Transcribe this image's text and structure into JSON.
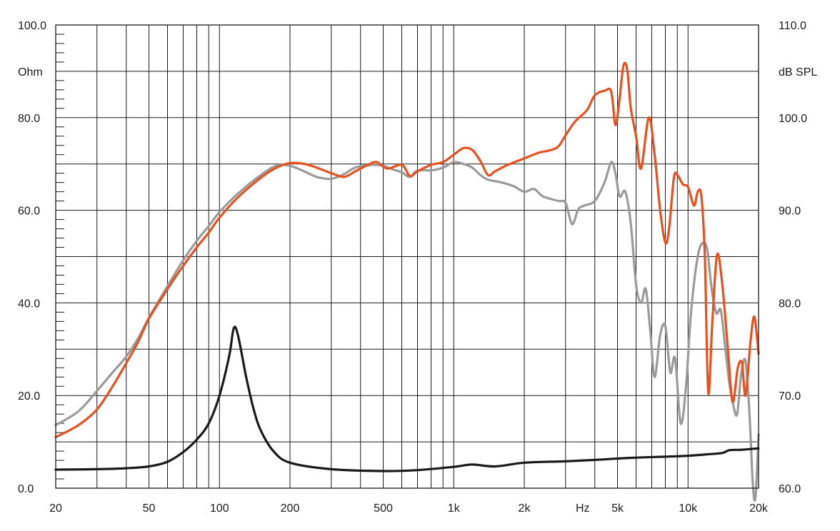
{
  "chart_data": {
    "type": "line",
    "xscale": "log",
    "xlim": [
      20,
      20000
    ],
    "grid": true,
    "legend": "none",
    "left_axis": {
      "label": "Ohm",
      "ylim": [
        0,
        100
      ],
      "ticks": [
        {
          "value": 0,
          "label": "0.0"
        },
        {
          "value": 20,
          "label": "20.0"
        },
        {
          "value": 40,
          "label": "40.0"
        },
        {
          "value": 60,
          "label": "60.0"
        },
        {
          "value": 80,
          "label": "80.0"
        },
        {
          "value": 100,
          "label": "100.0"
        }
      ]
    },
    "right_axis": {
      "label": "dB SPL",
      "ylim": [
        60,
        110
      ],
      "ticks": [
        {
          "value": 60,
          "label": "60.0"
        },
        {
          "value": 70,
          "label": "70.0"
        },
        {
          "value": 80,
          "label": "80.0"
        },
        {
          "value": 90,
          "label": "90.0"
        },
        {
          "value": 100,
          "label": "100.0"
        },
        {
          "value": 110,
          "label": "110.0"
        }
      ]
    },
    "x_axis": {
      "unit_label": "Hz",
      "unit_position": 3000,
      "ticks": [
        {
          "value": 20,
          "label": "20"
        },
        {
          "value": 50,
          "label": "50"
        },
        {
          "value": 100,
          "label": "100"
        },
        {
          "value": 200,
          "label": "200"
        },
        {
          "value": 500,
          "label": "500"
        },
        {
          "value": 1000,
          "label": "1k"
        },
        {
          "value": 2000,
          "label": "2k"
        },
        {
          "value": 5000,
          "label": "5k"
        },
        {
          "value": 10000,
          "label": "10k"
        },
        {
          "value": 20000,
          "label": "20k"
        }
      ],
      "gridlines": [
        20,
        30,
        40,
        50,
        60,
        70,
        80,
        90,
        100,
        200,
        300,
        400,
        500,
        600,
        700,
        800,
        900,
        1000,
        2000,
        3000,
        4000,
        5000,
        6000,
        7000,
        8000,
        9000,
        10000,
        20000
      ]
    },
    "series": [
      {
        "axis": "right",
        "color": "#e8501e",
        "points": [
          [
            20,
            65.5
          ],
          [
            25,
            66.8
          ],
          [
            30,
            68.5
          ],
          [
            35,
            71
          ],
          [
            40,
            73.5
          ],
          [
            45,
            75.8
          ],
          [
            50,
            78.3
          ],
          [
            60,
            81.5
          ],
          [
            70,
            84
          ],
          [
            80,
            86
          ],
          [
            90,
            87.6
          ],
          [
            100,
            89.2
          ],
          [
            120,
            91.4
          ],
          [
            150,
            93.5
          ],
          [
            175,
            94.6
          ],
          [
            200,
            95.1
          ],
          [
            230,
            95.0
          ],
          [
            260,
            94.6
          ],
          [
            300,
            94.0
          ],
          [
            340,
            93.6
          ],
          [
            380,
            94.2
          ],
          [
            430,
            94.9
          ],
          [
            470,
            95.2
          ],
          [
            520,
            94.5
          ],
          [
            600,
            94.9
          ],
          [
            650,
            93.7
          ],
          [
            700,
            94.2
          ],
          [
            800,
            94.9
          ],
          [
            900,
            95.2
          ],
          [
            1000,
            96.0
          ],
          [
            1100,
            96.7
          ],
          [
            1200,
            96.5
          ],
          [
            1300,
            95.3
          ],
          [
            1400,
            93.8
          ],
          [
            1500,
            94.2
          ],
          [
            1700,
            94.9
          ],
          [
            2000,
            95.6
          ],
          [
            2300,
            96.2
          ],
          [
            2600,
            96.5
          ],
          [
            2800,
            96.9
          ],
          [
            3000,
            98.1
          ],
          [
            3300,
            99.6
          ],
          [
            3700,
            100.8
          ],
          [
            4000,
            102.4
          ],
          [
            4400,
            102.9
          ],
          [
            4700,
            102.8
          ],
          [
            4900,
            99.2
          ],
          [
            5100,
            102
          ],
          [
            5300,
            105.6
          ],
          [
            5500,
            105.2
          ],
          [
            5700,
            101
          ],
          [
            6000,
            98
          ],
          [
            6300,
            94.5
          ],
          [
            6800,
            100
          ],
          [
            7200,
            96
          ],
          [
            7600,
            90
          ],
          [
            8000,
            86.5
          ],
          [
            8300,
            88
          ],
          [
            8700,
            93.5
          ],
          [
            9000,
            93.8
          ],
          [
            9500,
            92.8
          ],
          [
            10000,
            92.5
          ],
          [
            10600,
            90.5
          ],
          [
            11000,
            92.0
          ],
          [
            11400,
            91.5
          ],
          [
            11800,
            85
          ],
          [
            12200,
            70.3
          ],
          [
            12700,
            78
          ],
          [
            13300,
            85.2
          ],
          [
            14000,
            82
          ],
          [
            14800,
            75
          ],
          [
            15500,
            69.3
          ],
          [
            16300,
            73
          ],
          [
            17000,
            73.5
          ],
          [
            17600,
            70
          ],
          [
            18500,
            76
          ],
          [
            19200,
            78.5
          ],
          [
            20000,
            74.5
          ]
        ]
      },
      {
        "axis": "right",
        "color": "#9a9a9a",
        "points": [
          [
            20,
            66.8
          ],
          [
            25,
            68.3
          ],
          [
            30,
            70.5
          ],
          [
            35,
            72.5
          ],
          [
            40,
            74.2
          ],
          [
            45,
            76.2
          ],
          [
            50,
            78.4
          ],
          [
            60,
            81.8
          ],
          [
            70,
            84.6
          ],
          [
            80,
            86.7
          ],
          [
            90,
            88.3
          ],
          [
            100,
            89.8
          ],
          [
            120,
            91.8
          ],
          [
            150,
            93.8
          ],
          [
            175,
            94.8
          ],
          [
            200,
            94.8
          ],
          [
            230,
            94.2
          ],
          [
            260,
            93.6
          ],
          [
            300,
            93.4
          ],
          [
            340,
            93.9
          ],
          [
            380,
            94.6
          ],
          [
            450,
            94.9
          ],
          [
            500,
            94.8
          ],
          [
            550,
            94.4
          ],
          [
            600,
            94.1
          ],
          [
            650,
            93.6
          ],
          [
            700,
            94.3
          ],
          [
            800,
            94.3
          ],
          [
            900,
            94.6
          ],
          [
            1000,
            95.2
          ],
          [
            1100,
            95.0
          ],
          [
            1200,
            94.6
          ],
          [
            1300,
            93.8
          ],
          [
            1400,
            93.3
          ],
          [
            1600,
            93.0
          ],
          [
            1800,
            92.6
          ],
          [
            2000,
            92.0
          ],
          [
            2200,
            92.3
          ],
          [
            2400,
            91.5
          ],
          [
            2800,
            91.0
          ],
          [
            3000,
            90.8
          ],
          [
            3200,
            88.5
          ],
          [
            3400,
            90.1
          ],
          [
            3600,
            90.5
          ],
          [
            4000,
            91.0
          ],
          [
            4400,
            93.0
          ],
          [
            4700,
            95.2
          ],
          [
            4900,
            94.0
          ],
          [
            5100,
            91.5
          ],
          [
            5400,
            92.0
          ],
          [
            5700,
            88.5
          ],
          [
            6000,
            82.0
          ],
          [
            6300,
            80.0
          ],
          [
            6600,
            81.5
          ],
          [
            6900,
            77.0
          ],
          [
            7200,
            72.0
          ],
          [
            7600,
            76.5
          ],
          [
            8000,
            77.5
          ],
          [
            8400,
            72.5
          ],
          [
            8800,
            74.0
          ],
          [
            9300,
            67.0
          ],
          [
            9800,
            71.0
          ],
          [
            10300,
            79.0
          ],
          [
            11000,
            85.0
          ],
          [
            11600,
            86.5
          ],
          [
            12100,
            85.6
          ],
          [
            12600,
            81.6
          ],
          [
            13200,
            78.9
          ],
          [
            13800,
            79.2
          ],
          [
            14400,
            75.3
          ],
          [
            15000,
            71.4
          ],
          [
            15600,
            69.0
          ],
          [
            16200,
            68.0
          ],
          [
            16900,
            72.5
          ],
          [
            17600,
            73.7
          ],
          [
            18300,
            68.0
          ],
          [
            18900,
            60.5
          ],
          [
            19400,
            59.0
          ],
          [
            20000,
            65.8
          ]
        ]
      },
      {
        "axis": "left",
        "color": "#1a1a1a",
        "points": [
          [
            20,
            4.0
          ],
          [
            30,
            4.1
          ],
          [
            40,
            4.3
          ],
          [
            50,
            4.7
          ],
          [
            60,
            5.7
          ],
          [
            70,
            7.8
          ],
          [
            80,
            10.5
          ],
          [
            90,
            14.0
          ],
          [
            100,
            20.0
          ],
          [
            110,
            28.5
          ],
          [
            115,
            34.5
          ],
          [
            120,
            33.0
          ],
          [
            130,
            24.0
          ],
          [
            140,
            17.0
          ],
          [
            150,
            12.5
          ],
          [
            170,
            8.0
          ],
          [
            200,
            5.5
          ],
          [
            300,
            4.1
          ],
          [
            500,
            3.7
          ],
          [
            700,
            3.9
          ],
          [
            1000,
            4.6
          ],
          [
            1200,
            5.1
          ],
          [
            1500,
            4.7
          ],
          [
            2000,
            5.5
          ],
          [
            3000,
            5.8
          ],
          [
            4000,
            6.1
          ],
          [
            5000,
            6.4
          ],
          [
            6000,
            6.6
          ],
          [
            8000,
            6.8
          ],
          [
            10000,
            7.0
          ],
          [
            12000,
            7.3
          ],
          [
            14000,
            7.6
          ],
          [
            15000,
            8.2
          ],
          [
            17000,
            8.3
          ],
          [
            20000,
            8.6
          ]
        ]
      }
    ]
  }
}
